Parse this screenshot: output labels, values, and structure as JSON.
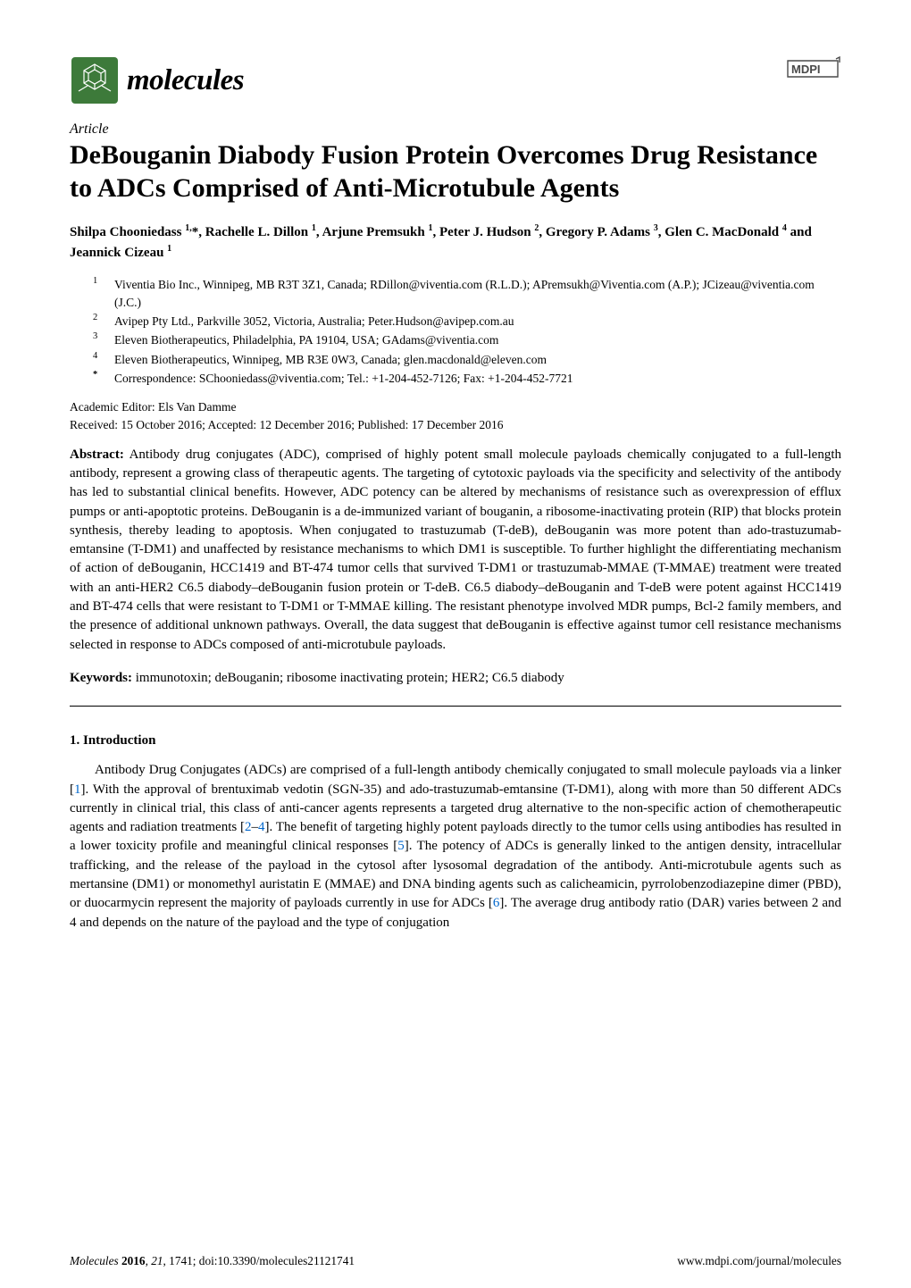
{
  "journal": "molecules",
  "publisher": "MDPI",
  "article_type": "Article",
  "title": "DeBouganin Diabody Fusion Protein Overcomes Drug Resistance to ADCs Comprised of Anti-Microtubule Agents",
  "authors_html": "Shilpa Chooniedass <sup>1,</sup>*, Rachelle L. Dillon <sup>1</sup>, Arjune Premsukh <sup>1</sup>, Peter J. Hudson <sup>2</sup>, Gregory P. Adams <sup>3</sup>, Glen C. MacDonald <sup>4</sup> and Jeannick Cizeau <sup>1</sup>",
  "affiliations": [
    {
      "num": "1",
      "text": "Viventia Bio Inc., Winnipeg, MB R3T 3Z1, Canada; RDillon@viventia.com (R.L.D.); APremsukh@Viventia.com (A.P.); JCizeau@viventia.com (J.C.)"
    },
    {
      "num": "2",
      "text": "Avipep Pty Ltd., Parkville 3052, Victoria, Australia; Peter.Hudson@avipep.com.au"
    },
    {
      "num": "3",
      "text": "Eleven Biotherapeutics, Philadelphia, PA 19104, USA; GAdams@viventia.com"
    },
    {
      "num": "4",
      "text": "Eleven Biotherapeutics, Winnipeg, MB R3E 0W3, Canada; glen.macdonald@eleven.com"
    },
    {
      "num": "*",
      "text": "Correspondence: SChooniedass@viventia.com; Tel.: +1-204-452-7126; Fax: +1-204-452-7721"
    }
  ],
  "editor": "Academic Editor: Els Van Damme",
  "dates": "Received: 15 October 2016; Accepted: 12 December 2016; Published: 17 December 2016",
  "abstract_label": "Abstract:",
  "abstract_text": " Antibody drug conjugates (ADC), comprised of highly potent small molecule payloads chemically conjugated to a full-length antibody, represent a growing class of therapeutic agents. The targeting of cytotoxic payloads via the specificity and selectivity of the antibody has led to substantial clinical benefits. However, ADC potency can be altered by mechanisms of resistance such as overexpression of efflux pumps or anti-apoptotic proteins. DeBouganin is a de-immunized variant of bouganin, a ribosome-inactivating protein (RIP) that blocks protein synthesis, thereby leading to apoptosis. When conjugated to trastuzumab (T-deB), deBouganin was more potent than ado-trastuzumab-emtansine (T-DM1) and unaffected by resistance mechanisms to which DM1 is susceptible. To further highlight the differentiating mechanism of action of deBouganin, HCC1419 and BT-474 tumor cells that survived T-DM1 or trastuzumab-MMAE (T-MMAE) treatment were treated with an anti-HER2 C6.5 diabody–deBouganin fusion protein or T-deB. C6.5 diabody–deBouganin and T-deB were potent against HCC1419 and BT-474 cells that were resistant to T-DM1 or T-MMAE killing. The resistant phenotype involved MDR pumps, Bcl-2 family members, and the presence of additional unknown pathways. Overall, the data suggest that deBouganin is effective against tumor cell resistance mechanisms selected in response to ADCs composed of anti-microtubule payloads.",
  "keywords_label": "Keywords:",
  "keywords_text": " immunotoxin; deBouganin; ribosome inactivating protein; HER2; C6.5 diabody",
  "section1_heading": "1. Introduction",
  "intro_html": "Antibody Drug Conjugates (ADCs) are comprised of a full-length antibody chemically conjugated to small molecule payloads via a linker [<span class=\"cite\">1</span>]. With the approval of brentuximab vedotin (SGN-35) and ado-trastuzumab-emtansine (T-DM1), along with more than 50 different ADCs currently in clinical trial, this class of anti-cancer agents represents a targeted drug alternative to the non-specific action of chemotherapeutic agents and radiation treatments [<span class=\"cite\">2</span>–<span class=\"cite\">4</span>]. The benefit of targeting highly potent payloads directly to the tumor cells using antibodies has resulted in a lower toxicity profile and meaningful clinical responses [<span class=\"cite\">5</span>]. The potency of ADCs is generally linked to the antigen density, intracellular trafficking, and the release of the payload in the cytosol after lysosomal degradation of the antibody. Anti-microtubule agents such as mertansine (DM1) or monomethyl auristatin E (MMAE) and DNA binding agents such as calicheamicin, pyrrolobenzodiazepine dimer (PBD), or duocarmycin represent the majority of payloads currently in use for ADCs [<span class=\"cite\">6</span>]. The average drug antibody ratio (DAR) varies between 2 and 4 and depends on the nature of the payload and the type of conjugation",
  "footer_left_html": "<span class=\"jn\">Molecules</span> <span class=\"yr\">2016</span>, <span style=\"font-style:italic;\">21</span>, 1741; doi:10.3390/molecules21121741",
  "footer_right": "www.mdpi.com/journal/molecules",
  "colors": {
    "logo_green": "#3d7a3a",
    "cite_blue": "#0066cc",
    "mdpi_stroke": "#4a4a4a"
  }
}
